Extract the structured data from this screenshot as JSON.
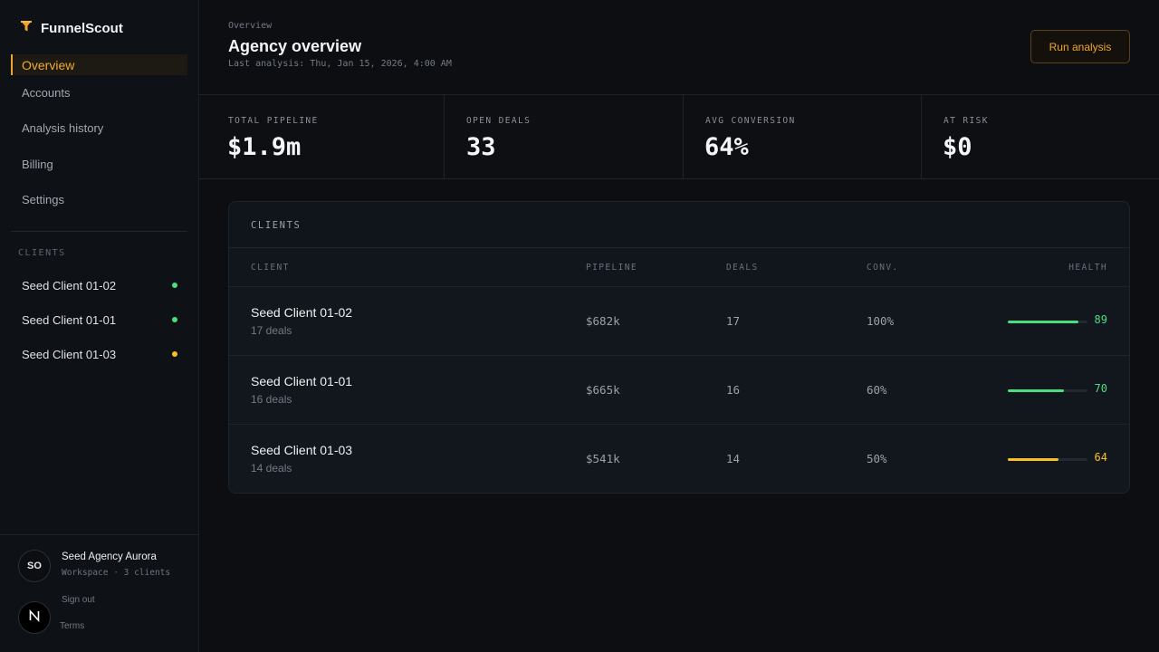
{
  "colors": {
    "accent": "#f0a52a",
    "good": "#4ade80",
    "warn": "#fbbf24",
    "background": "#0c0e12"
  },
  "brand": {
    "name": "FunnelScout",
    "icon": "funnel-icon"
  },
  "nav": {
    "items": [
      {
        "label": "Overview",
        "active": true
      },
      {
        "label": "Accounts"
      },
      {
        "label": "Analysis history"
      },
      {
        "label": "Billing"
      },
      {
        "label": "Settings"
      }
    ]
  },
  "sidebar_clients": {
    "heading": "CLIENTS",
    "items": [
      {
        "label": "Seed Client 01-02",
        "status": "good"
      },
      {
        "label": "Seed Client 01-01",
        "status": "good"
      },
      {
        "label": "Seed Client 01-03",
        "status": "warn"
      }
    ]
  },
  "account": {
    "initials": "SO",
    "name": "Seed Agency Aurora",
    "subtitle": "Workspace · 3 clients",
    "sign_out": "Sign out",
    "terms": "Terms",
    "badge": "N"
  },
  "header": {
    "breadcrumb": "Overview",
    "title": "Agency overview",
    "last_analysis": "Last analysis: Thu, Jan 15, 2026, 4:00 AM",
    "run_button": "Run analysis"
  },
  "stats": [
    {
      "label": "TOTAL PIPELINE",
      "value": "$1.9m"
    },
    {
      "label": "OPEN DEALS",
      "value": "33"
    },
    {
      "label": "AVG CONVERSION",
      "value": "64%"
    },
    {
      "label": "AT RISK",
      "value": "$0"
    }
  ],
  "clients_table": {
    "title": "CLIENTS",
    "columns": [
      "CLIENT",
      "PIPELINE",
      "DEALS",
      "CONV.",
      "HEALTH"
    ],
    "rows": [
      {
        "name": "Seed Client 01-02",
        "deals_label": "17 deals",
        "pipeline": "$682k",
        "deals": "17",
        "conv": "100%",
        "health": 89,
        "health_label": "89",
        "status": "good"
      },
      {
        "name": "Seed Client 01-01",
        "deals_label": "16 deals",
        "pipeline": "$665k",
        "deals": "16",
        "conv": "60%",
        "health": 70,
        "health_label": "70",
        "status": "good"
      },
      {
        "name": "Seed Client 01-03",
        "deals_label": "14 deals",
        "pipeline": "$541k",
        "deals": "14",
        "conv": "50%",
        "health": 64,
        "health_label": "64",
        "status": "warn"
      }
    ]
  }
}
